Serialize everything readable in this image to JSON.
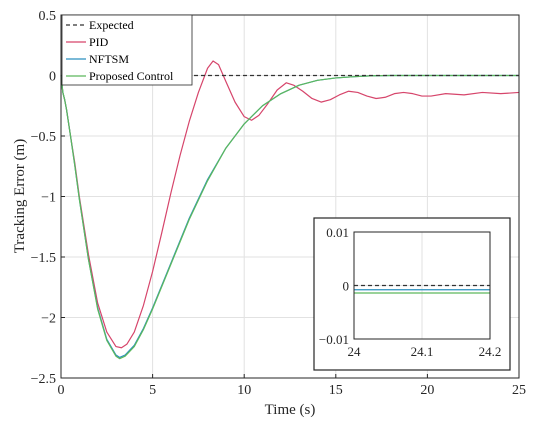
{
  "chart_data": {
    "type": "line",
    "xlabel": "Time (s)",
    "ylabel": "Tracking Error (m)",
    "xlim": [
      0,
      25
    ],
    "ylim": [
      -2.5,
      0.5
    ],
    "xticks": [
      0,
      5,
      10,
      15,
      20,
      25
    ],
    "yticks": [
      0.5,
      0,
      -0.5,
      -1,
      -1.5,
      -2,
      -2.5
    ],
    "xtick_labels": [
      "0",
      "5",
      "10",
      "15",
      "20",
      "25"
    ],
    "ytick_labels": [
      "0.5",
      "0",
      "−0.5",
      "−1",
      "−1.5",
      "−2",
      "−2.5"
    ],
    "grid": true,
    "legend_position": "top-left",
    "series": [
      {
        "name": "Expected",
        "color": "#333333",
        "style": "dashed",
        "points": [
          [
            0,
            0
          ],
          [
            25,
            0
          ]
        ]
      },
      {
        "name": "PID",
        "color": "#D6456B",
        "style": "solid",
        "points": [
          [
            0,
            0
          ],
          [
            0.1,
            -0.14
          ],
          [
            0.2,
            -0.2
          ],
          [
            0.3,
            -0.28
          ],
          [
            0.5,
            -0.48
          ],
          [
            0.75,
            -0.72
          ],
          [
            1,
            -1.0
          ],
          [
            1.5,
            -1.48
          ],
          [
            2,
            -1.88
          ],
          [
            2.5,
            -2.12
          ],
          [
            3,
            -2.24
          ],
          [
            3.3,
            -2.25
          ],
          [
            3.6,
            -2.22
          ],
          [
            4,
            -2.12
          ],
          [
            4.5,
            -1.9
          ],
          [
            5,
            -1.62
          ],
          [
            5.5,
            -1.3
          ],
          [
            6,
            -0.97
          ],
          [
            6.5,
            -0.66
          ],
          [
            7,
            -0.38
          ],
          [
            7.5,
            -0.14
          ],
          [
            8,
            0.06
          ],
          [
            8.3,
            0.12
          ],
          [
            8.6,
            0.09
          ],
          [
            9,
            -0.05
          ],
          [
            9.5,
            -0.22
          ],
          [
            10,
            -0.34
          ],
          [
            10.4,
            -0.37
          ],
          [
            10.8,
            -0.33
          ],
          [
            11.3,
            -0.23
          ],
          [
            11.8,
            -0.12
          ],
          [
            12.3,
            -0.06
          ],
          [
            12.7,
            -0.08
          ],
          [
            13.2,
            -0.13
          ],
          [
            13.7,
            -0.19
          ],
          [
            14.2,
            -0.22
          ],
          [
            14.7,
            -0.2
          ],
          [
            15.2,
            -0.16
          ],
          [
            15.7,
            -0.13
          ],
          [
            16.2,
            -0.14
          ],
          [
            16.7,
            -0.17
          ],
          [
            17.2,
            -0.19
          ],
          [
            17.7,
            -0.18
          ],
          [
            18.2,
            -0.15
          ],
          [
            18.7,
            -0.14
          ],
          [
            19.2,
            -0.15
          ],
          [
            19.7,
            -0.17
          ],
          [
            20.2,
            -0.17
          ],
          [
            21,
            -0.15
          ],
          [
            22,
            -0.16
          ],
          [
            23,
            -0.14
          ],
          [
            24,
            -0.15
          ],
          [
            25,
            -0.14
          ]
        ]
      },
      {
        "name": "NFTSM",
        "color": "#2A8FBF",
        "style": "solid",
        "points": [
          [
            0,
            0
          ],
          [
            0.1,
            -0.14
          ],
          [
            0.2,
            -0.2
          ],
          [
            0.3,
            -0.28
          ],
          [
            0.5,
            -0.48
          ],
          [
            0.75,
            -0.74
          ],
          [
            1,
            -1.02
          ],
          [
            1.5,
            -1.52
          ],
          [
            2,
            -1.92
          ],
          [
            2.5,
            -2.18
          ],
          [
            3,
            -2.31
          ],
          [
            3.2,
            -2.33
          ],
          [
            3.5,
            -2.31
          ],
          [
            4,
            -2.23
          ],
          [
            4.5,
            -2.09
          ],
          [
            5,
            -1.92
          ],
          [
            6,
            -1.55
          ],
          [
            7,
            -1.18
          ],
          [
            8,
            -0.86
          ],
          [
            9,
            -0.6
          ],
          [
            10,
            -0.4
          ],
          [
            11,
            -0.25
          ],
          [
            12,
            -0.15
          ],
          [
            13,
            -0.08
          ],
          [
            14,
            -0.04
          ],
          [
            15,
            -0.02
          ],
          [
            16,
            -0.01
          ],
          [
            17,
            -0.002
          ],
          [
            18,
            0
          ],
          [
            25,
            0
          ]
        ]
      },
      {
        "name": "Proposed Control",
        "color": "#5CB85C",
        "style": "solid",
        "points": [
          [
            0,
            0
          ],
          [
            0.1,
            -0.14
          ],
          [
            0.2,
            -0.2
          ],
          [
            0.3,
            -0.28
          ],
          [
            0.5,
            -0.48
          ],
          [
            0.75,
            -0.74
          ],
          [
            1,
            -1.02
          ],
          [
            1.5,
            -1.52
          ],
          [
            2,
            -1.93
          ],
          [
            2.5,
            -2.19
          ],
          [
            3,
            -2.32
          ],
          [
            3.2,
            -2.34
          ],
          [
            3.5,
            -2.32
          ],
          [
            4,
            -2.24
          ],
          [
            4.5,
            -2.1
          ],
          [
            5,
            -1.93
          ],
          [
            6,
            -1.56
          ],
          [
            7,
            -1.19
          ],
          [
            8,
            -0.87
          ],
          [
            9,
            -0.6
          ],
          [
            10,
            -0.4
          ],
          [
            11,
            -0.25
          ],
          [
            12,
            -0.15
          ],
          [
            13,
            -0.08
          ],
          [
            14,
            -0.04
          ],
          [
            15,
            -0.02
          ],
          [
            16,
            -0.01
          ],
          [
            17,
            -0.002
          ],
          [
            18,
            0
          ],
          [
            25,
            0
          ]
        ]
      }
    ],
    "inset": {
      "xlim": [
        24,
        24.2
      ],
      "ylim": [
        -0.01,
        0.01
      ],
      "xticks": [
        24,
        24.1,
        24.2
      ],
      "yticks": [
        0.01,
        0,
        -0.01
      ],
      "xtick_labels": [
        "24",
        "24.1",
        "24.2"
      ],
      "ytick_labels": [
        "0.01",
        "0",
        "−0.01"
      ],
      "grid": true,
      "series": [
        {
          "name": "Expected",
          "color": "#333333",
          "style": "dashed",
          "value": 0
        },
        {
          "name": "NFTSM",
          "color": "#2A8FBF",
          "style": "solid",
          "value": -0.0008
        },
        {
          "name": "Proposed Control",
          "color": "#5CB85C",
          "style": "solid",
          "value": -0.0014
        }
      ]
    }
  }
}
